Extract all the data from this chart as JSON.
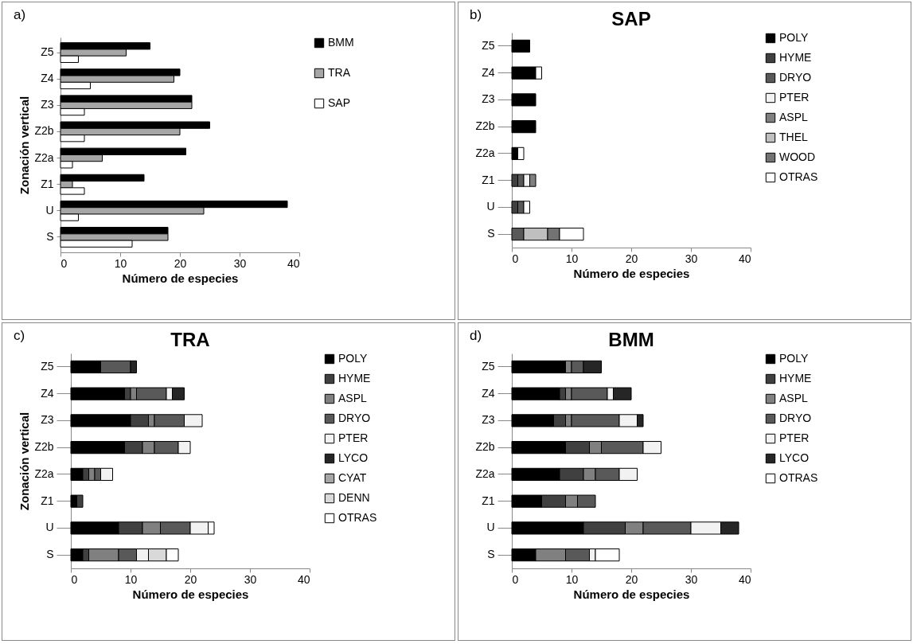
{
  "chart_data": [
    {
      "type": "bar",
      "orientation": "horizontal",
      "annotations": [
        "a)"
      ],
      "xlabel": "Número de especies",
      "ylabel": "Zonación vertical",
      "categories": [
        "Z5",
        "Z4",
        "Z3",
        "Z2b",
        "Z2a",
        "Z1",
        "U",
        "S"
      ],
      "xlim": [
        0,
        40
      ],
      "xticks": [
        0,
        10,
        20,
        30,
        40
      ],
      "grid": false,
      "legend": "right",
      "series": [
        {
          "name": "BMM",
          "color": "#000000",
          "values": [
            15,
            20,
            22,
            25,
            21,
            14,
            38,
            18
          ]
        },
        {
          "name": "TRA",
          "color": "#a6a6a6",
          "values": [
            11,
            19,
            22,
            20,
            7,
            2,
            24,
            18
          ]
        },
        {
          "name": "SAP",
          "color": "#ffffff",
          "values": [
            3,
            5,
            4,
            4,
            2,
            4,
            3,
            12
          ]
        }
      ]
    },
    {
      "type": "bar",
      "orientation": "horizontal",
      "stacked": true,
      "annotations": [
        "b)"
      ],
      "title": "SAP",
      "xlabel": "Número de especies",
      "categories": [
        "Z5",
        "Z4",
        "Z3",
        "Z2b",
        "Z2a",
        "Z1",
        "U",
        "S"
      ],
      "xlim": [
        0,
        40
      ],
      "xticks": [
        0,
        10,
        20,
        30,
        40
      ],
      "grid": false,
      "legend": "right",
      "series": [
        {
          "name": "POLY",
          "color": "#000000",
          "values": [
            3,
            4,
            4,
            4,
            1,
            null,
            null,
            null
          ]
        },
        {
          "name": "HYME",
          "color": "#404040",
          "values": [
            null,
            null,
            null,
            null,
            null,
            1,
            1,
            null
          ]
        },
        {
          "name": "DRYO",
          "color": "#595959",
          "values": [
            null,
            null,
            null,
            null,
            null,
            1,
            1,
            2
          ]
        },
        {
          "name": "PTER",
          "color": "#f2f2f2",
          "values": [
            null,
            null,
            null,
            null,
            null,
            1,
            null,
            null
          ]
        },
        {
          "name": "ASPL",
          "color": "#808080",
          "values": [
            null,
            null,
            null,
            null,
            null,
            1,
            null,
            null
          ]
        },
        {
          "name": "THEL",
          "color": "#bfbfbf",
          "values": [
            null,
            null,
            null,
            null,
            null,
            null,
            null,
            4
          ]
        },
        {
          "name": "WOOD",
          "color": "#737373",
          "values": [
            null,
            null,
            null,
            null,
            null,
            null,
            null,
            2
          ]
        },
        {
          "name": "OTRAS",
          "color": "#ffffff",
          "values": [
            null,
            1,
            null,
            null,
            1,
            null,
            1,
            4
          ]
        }
      ]
    },
    {
      "type": "bar",
      "orientation": "horizontal",
      "stacked": true,
      "annotations": [
        "c)"
      ],
      "title": "TRA",
      "xlabel": "Número de especies",
      "ylabel": "Zonación vertical",
      "categories": [
        "Z5",
        "Z4",
        "Z3",
        "Z2b",
        "Z2a",
        "Z1",
        "U",
        "S"
      ],
      "xlim": [
        0,
        40
      ],
      "xticks": [
        0,
        10,
        20,
        30,
        40
      ],
      "grid": false,
      "legend": "right",
      "series": [
        {
          "name": "POLY",
          "color": "#000000",
          "values": [
            5,
            9,
            10,
            9,
            2,
            1,
            8,
            2
          ]
        },
        {
          "name": "HYME",
          "color": "#404040",
          "values": [
            null,
            1,
            3,
            3,
            1,
            1,
            4,
            1
          ]
        },
        {
          "name": "ASPL",
          "color": "#808080",
          "values": [
            null,
            1,
            1,
            2,
            1,
            null,
            3,
            5
          ]
        },
        {
          "name": "DRYO",
          "color": "#595959",
          "values": [
            5,
            5,
            5,
            4,
            1,
            null,
            5,
            3
          ]
        },
        {
          "name": "PTER",
          "color": "#f2f2f2",
          "values": [
            null,
            1,
            3,
            2,
            2,
            null,
            3,
            2
          ]
        },
        {
          "name": "LYCO",
          "color": "#262626",
          "values": [
            1,
            2,
            null,
            null,
            null,
            null,
            null,
            null
          ]
        },
        {
          "name": "CYAT",
          "color": "#a6a6a6",
          "values": [
            null,
            null,
            null,
            null,
            null,
            null,
            null,
            null
          ]
        },
        {
          "name": "DENN",
          "color": "#d9d9d9",
          "values": [
            null,
            null,
            null,
            null,
            null,
            null,
            null,
            3
          ]
        },
        {
          "name": "OTRAS",
          "color": "#ffffff",
          "values": [
            null,
            null,
            null,
            null,
            null,
            null,
            1,
            2
          ]
        }
      ]
    },
    {
      "type": "bar",
      "orientation": "horizontal",
      "stacked": true,
      "annotations": [
        "d)"
      ],
      "title": "BMM",
      "xlabel": "Número de especies",
      "categories": [
        "Z5",
        "Z4",
        "Z3",
        "Z2b",
        "Z2a",
        "Z1",
        "U",
        "S"
      ],
      "xlim": [
        0,
        40
      ],
      "xticks": [
        0,
        10,
        20,
        30,
        40
      ],
      "grid": false,
      "legend": "right",
      "series": [
        {
          "name": "POLY",
          "color": "#000000",
          "values": [
            9,
            8,
            7,
            9,
            8,
            5,
            12,
            4
          ]
        },
        {
          "name": "HYME",
          "color": "#404040",
          "values": [
            null,
            1,
            2,
            4,
            4,
            4,
            7,
            null
          ]
        },
        {
          "name": "ASPL",
          "color": "#808080",
          "values": [
            1,
            1,
            1,
            2,
            2,
            2,
            3,
            5
          ]
        },
        {
          "name": "DRYO",
          "color": "#595959",
          "values": [
            2,
            6,
            8,
            7,
            4,
            3,
            8,
            4
          ]
        },
        {
          "name": "PTER",
          "color": "#f2f2f2",
          "values": [
            null,
            1,
            3,
            3,
            3,
            null,
            5,
            1
          ]
        },
        {
          "name": "LYCO",
          "color": "#262626",
          "values": [
            3,
            3,
            1,
            null,
            null,
            null,
            3,
            null
          ]
        },
        {
          "name": "OTRAS",
          "color": "#ffffff",
          "values": [
            null,
            null,
            null,
            null,
            null,
            null,
            null,
            4
          ]
        }
      ]
    }
  ]
}
